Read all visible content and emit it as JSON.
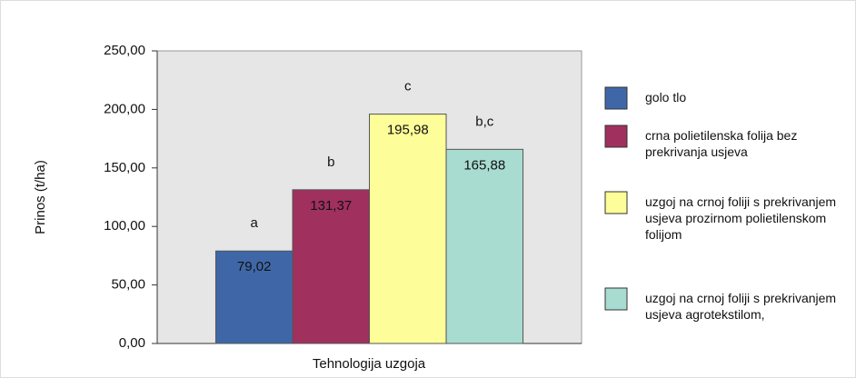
{
  "chart_data": {
    "type": "bar",
    "y_label": "Prinos (t/ha)",
    "x_label": "Tehnologija uzgoja",
    "ylim": [
      0,
      250
    ],
    "yticks": [
      {
        "value": 0,
        "label": "0,00"
      },
      {
        "value": 50,
        "label": "50,00"
      },
      {
        "value": 100,
        "label": "100,00"
      },
      {
        "value": 150,
        "label": "150,00"
      },
      {
        "value": 200,
        "label": "200,00"
      },
      {
        "value": 250,
        "label": "250,00"
      }
    ],
    "series": [
      {
        "name": "golo tlo",
        "color": "#3f67a8",
        "values": [
          79.02
        ],
        "value_labels": [
          "79,02"
        ],
        "annotations": [
          "a"
        ]
      },
      {
        "name": "crna polietilenska folija bez prekrivanja usjeva",
        "color": "#a0305e",
        "values": [
          131.37
        ],
        "value_labels": [
          "131,37"
        ],
        "annotations": [
          "b"
        ]
      },
      {
        "name": "uzgoj na crnoj foliji s prekrivanjem usjeva prozirnom polietilenskom folijom",
        "color": "#fdfd99",
        "values": [
          195.98
        ],
        "value_labels": [
          "195,98"
        ],
        "annotations": [
          "c"
        ]
      },
      {
        "name": "uzgoj na crnoj foliji s prekrivanjem usjeva agrotekstilom,",
        "color": "#a9dcd0",
        "values": [
          165.88
        ],
        "value_labels": [
          "165,88"
        ],
        "annotations": [
          "b,c"
        ]
      }
    ]
  }
}
